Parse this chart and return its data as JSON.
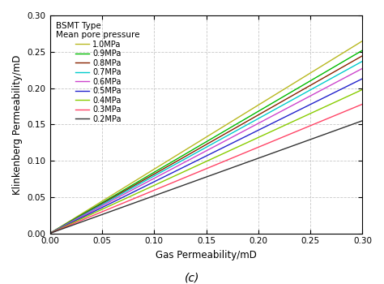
{
  "title_line1": "BSMT Type",
  "title_line2": "Mean pore pressure",
  "xlabel": "Gas Permeability/mD",
  "ylabel": "Klinkenberg Permeability/mD",
  "caption": "(c)",
  "xlim": [
    0,
    0.3
  ],
  "ylim": [
    0,
    0.3
  ],
  "xticks": [
    0,
    0.05,
    0.1,
    0.15,
    0.2,
    0.25,
    0.3
  ],
  "yticks": [
    0,
    0.05,
    0.1,
    0.15,
    0.2,
    0.25,
    0.3
  ],
  "pressures": [
    1.0,
    0.9,
    0.8,
    0.7,
    0.6,
    0.5,
    0.4,
    0.3,
    0.2
  ],
  "labels": [
    "1.0MPa",
    "0.9MPa",
    "0.8MPa",
    "0.7MPa",
    "0.6MPa",
    "0.5MPa",
    "0.4MPa",
    "0.3MPa",
    "0.2MPa"
  ],
  "colors": [
    "#b8b820",
    "#00bb00",
    "#882200",
    "#00cccc",
    "#cc44cc",
    "#2222cc",
    "#88cc00",
    "#ff4466",
    "#333333"
  ],
  "slopes": [
    0.883,
    0.84,
    0.815,
    0.79,
    0.757,
    0.71,
    0.66,
    0.593,
    0.517
  ],
  "bg_color": "#ffffff",
  "grid_color": "#c8c8c8",
  "legend_fontsize": 7.0,
  "legend_title_fontsize": 7.5,
  "axis_fontsize": 8.5,
  "tick_fontsize": 7.5,
  "caption_fontsize": 10
}
